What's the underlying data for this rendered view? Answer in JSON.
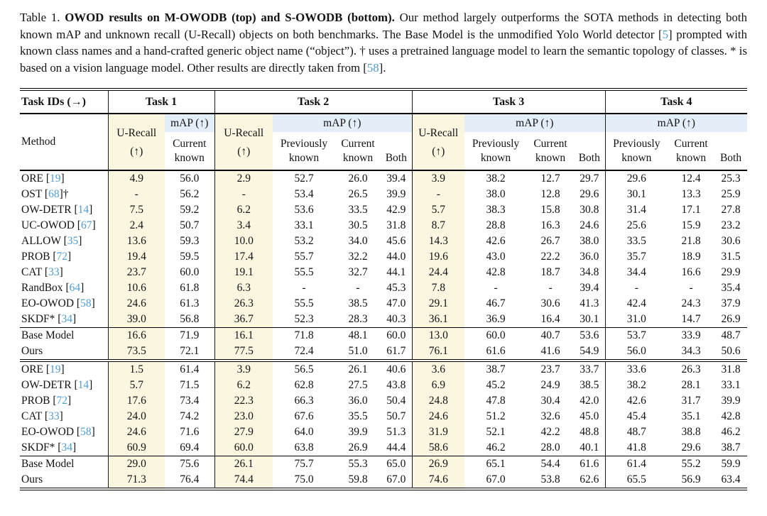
{
  "caption": {
    "label": "Table 1.",
    "title": "OWOD results on M-OWODB (top) and S-OWODB (bottom).",
    "body1": "Our method largely outperforms the SOTA methods in detecting both known mAP and unknown recall (U-Recall) objects on both benchmarks. The Base Model is the unmodified Yolo World detector",
    "bracket_open": "[",
    "cite1": "5",
    "bracket_close": "]",
    "body2": "prompted with known class names and a hand-crafted generic object name (“object”). † uses a pretrained language model to learn the semantic topology of classes. * is based on a vision language model. Other results are directly taken from",
    "cite2": "58",
    "period": "."
  },
  "table": {
    "header": {
      "task_ids_label": "Task IDs (→)",
      "method_label": "Method",
      "tasks": [
        "Task 1",
        "Task 2",
        "Task 3",
        "Task 4"
      ],
      "u_recall": "U-Recall",
      "arrow": "(↑)",
      "map_label": "mAP (↑)",
      "previously_known": "Previously known",
      "current_known": "Current known",
      "both": "Both"
    },
    "cite_brackets": {
      "open": "[",
      "close": "]"
    },
    "colors": {
      "u_recall_bg": "#faf6df",
      "map_bg": "#e3eef9",
      "citation": "#4f9dd0"
    },
    "sections": [
      {
        "rows": [
          {
            "method": "ORE",
            "cite": "19",
            "suffix": "",
            "values": [
              "4.9",
              "56.0",
              "2.9",
              "52.7",
              "26.0",
              "39.4",
              "3.9",
              "38.2",
              "12.7",
              "29.7",
              "29.6",
              "12.4",
              "25.3"
            ],
            "bold": []
          },
          {
            "method": "OST",
            "cite": "68",
            "suffix": "†",
            "values": [
              "-",
              "56.2",
              "-",
              "53.4",
              "26.5",
              "39.9",
              "-",
              "38.0",
              "12.8",
              "29.6",
              "30.1",
              "13.3",
              "25.9"
            ],
            "bold": []
          },
          {
            "method": "OW-DETR",
            "cite": "14",
            "suffix": "",
            "values": [
              "7.5",
              "59.2",
              "6.2",
              "53.6",
              "33.5",
              "42.9",
              "5.7",
              "38.3",
              "15.8",
              "30.8",
              "31.4",
              "17.1",
              "27.8"
            ],
            "bold": []
          },
          {
            "method": "UC-OWOD",
            "cite": "67",
            "suffix": "",
            "values": [
              "2.4",
              "50.7",
              "3.4",
              "33.1",
              "30.5",
              "31.8",
              "8.7",
              "28.8",
              "16.3",
              "24.6",
              "25.6",
              "15.9",
              "23.2"
            ],
            "bold": []
          },
          {
            "method": "ALLOW",
            "cite": "35",
            "suffix": "",
            "values": [
              "13.6",
              "59.3",
              "10.0",
              "53.2",
              "34.0",
              "45.6",
              "14.3",
              "42.6",
              "26.7",
              "38.0",
              "33.5",
              "21.8",
              "30.6"
            ],
            "bold": []
          },
          {
            "method": "PROB",
            "cite": "72",
            "suffix": "",
            "values": [
              "19.4",
              "59.5",
              "17.4",
              "55.7",
              "32.2",
              "44.0",
              "19.6",
              "43.0",
              "22.2",
              "36.0",
              "35.7",
              "18.9",
              "31.5"
            ],
            "bold": []
          },
          {
            "method": "CAT",
            "cite": "33",
            "suffix": "",
            "values": [
              "23.7",
              "60.0",
              "19.1",
              "55.5",
              "32.7",
              "44.1",
              "24.4",
              "42.8",
              "18.7",
              "34.8",
              "34.4",
              "16.6",
              "29.9"
            ],
            "bold": []
          },
          {
            "method": "RandBox",
            "cite": "64",
            "suffix": "",
            "values": [
              "10.6",
              "61.8",
              "6.3",
              "-",
              "-",
              "45.3",
              "7.8",
              "-",
              "-",
              "39.4",
              "-",
              "-",
              "35.4"
            ],
            "bold": []
          },
          {
            "method": "EO-OWOD",
            "cite": "58",
            "suffix": "",
            "values": [
              "24.6",
              "61.3",
              "26.3",
              "55.5",
              "38.5",
              "47.0",
              "29.1",
              "46.7",
              "30.6",
              "41.3",
              "42.4",
              "24.3",
              "37.9"
            ],
            "bold": []
          },
          {
            "method": "SKDF*",
            "cite": "34",
            "suffix": "",
            "values": [
              "39.0",
              "56.8",
              "36.7",
              "52.3",
              "28.3",
              "40.3",
              "36.1",
              "36.9",
              "16.4",
              "30.1",
              "31.0",
              "14.7",
              "26.9"
            ],
            "bold": []
          }
        ],
        "summary": [
          {
            "method": "Base Model",
            "cite": "",
            "suffix": "",
            "values": [
              "16.6",
              "71.9",
              "16.1",
              "71.8",
              "48.1",
              "60.0",
              "13.0",
              "60.0",
              "40.7",
              "53.6",
              "53.7",
              "33.9",
              "48.7"
            ],
            "bold": []
          },
          {
            "method": "Ours",
            "cite": "",
            "suffix": "",
            "method_bold": true,
            "values": [
              "73.5",
              "72.1",
              "77.5",
              "72.4",
              "51.0",
              "61.7",
              "76.1",
              "61.6",
              "41.6",
              "54.9",
              "56.0",
              "34.3",
              "50.6"
            ],
            "bold": [
              0,
              1,
              2,
              3,
              4,
              5,
              6,
              7,
              8,
              9,
              10,
              11,
              12
            ]
          }
        ]
      },
      {
        "rows": [
          {
            "method": "ORE",
            "cite": "19",
            "suffix": "",
            "values": [
              "1.5",
              "61.4",
              "3.9",
              "56.5",
              "26.1",
              "40.6",
              "3.6",
              "38.7",
              "23.7",
              "33.7",
              "33.6",
              "26.3",
              "31.8"
            ],
            "bold": []
          },
          {
            "method": "OW-DETR",
            "cite": "14",
            "suffix": "",
            "values": [
              "5.7",
              "71.5",
              "6.2",
              "62.8",
              "27.5",
              "43.8",
              "6.9",
              "45.2",
              "24.9",
              "38.5",
              "38.2",
              "28.1",
              "33.1"
            ],
            "bold": []
          },
          {
            "method": "PROB",
            "cite": "72",
            "suffix": "",
            "values": [
              "17.6",
              "73.4",
              "22.3",
              "66.3",
              "36.0",
              "50.4",
              "24.8",
              "47.8",
              "30.4",
              "42.0",
              "42.6",
              "31.7",
              "39.9"
            ],
            "bold": []
          },
          {
            "method": "CAT",
            "cite": "33",
            "suffix": "",
            "values": [
              "24.0",
              "74.2",
              "23.0",
              "67.6",
              "35.5",
              "50.7",
              "24.6",
              "51.2",
              "32.6",
              "45.0",
              "45.4",
              "35.1",
              "42.8"
            ],
            "bold": []
          },
          {
            "method": "EO-OWOD",
            "cite": "58",
            "suffix": "",
            "values": [
              "24.6",
              "71.6",
              "27.9",
              "64.0",
              "39.9",
              "51.3",
              "31.9",
              "52.1",
              "42.2",
              "48.8",
              "48.7",
              "38.8",
              "46.2"
            ],
            "bold": []
          },
          {
            "method": "SKDF*",
            "cite": "34",
            "suffix": "",
            "values": [
              "60.9",
              "69.4",
              "60.0",
              "63.8",
              "26.9",
              "44.4",
              "58.6",
              "46.2",
              "28.0",
              "40.1",
              "41.8",
              "29.6",
              "38.7"
            ],
            "bold": []
          }
        ],
        "summary": [
          {
            "method": "Base Model",
            "cite": "",
            "suffix": "",
            "values": [
              "29.0",
              "75.6",
              "26.1",
              "75.7",
              "55.3",
              "65.0",
              "26.9",
              "65.1",
              "54.4",
              "61.6",
              "61.4",
              "55.2",
              "59.9"
            ],
            "bold": [
              3
            ]
          },
          {
            "method": "Ours",
            "cite": "",
            "suffix": "",
            "method_bold": true,
            "values": [
              "71.3",
              "76.4",
              "74.4",
              "75.0",
              "59.8",
              "67.0",
              "74.6",
              "67.0",
              "53.8",
              "62.6",
              "65.5",
              "56.9",
              "63.4"
            ],
            "bold": [
              0,
              1,
              2,
              4,
              5,
              6,
              7,
              8,
              9,
              10,
              11,
              12
            ]
          }
        ]
      }
    ]
  }
}
